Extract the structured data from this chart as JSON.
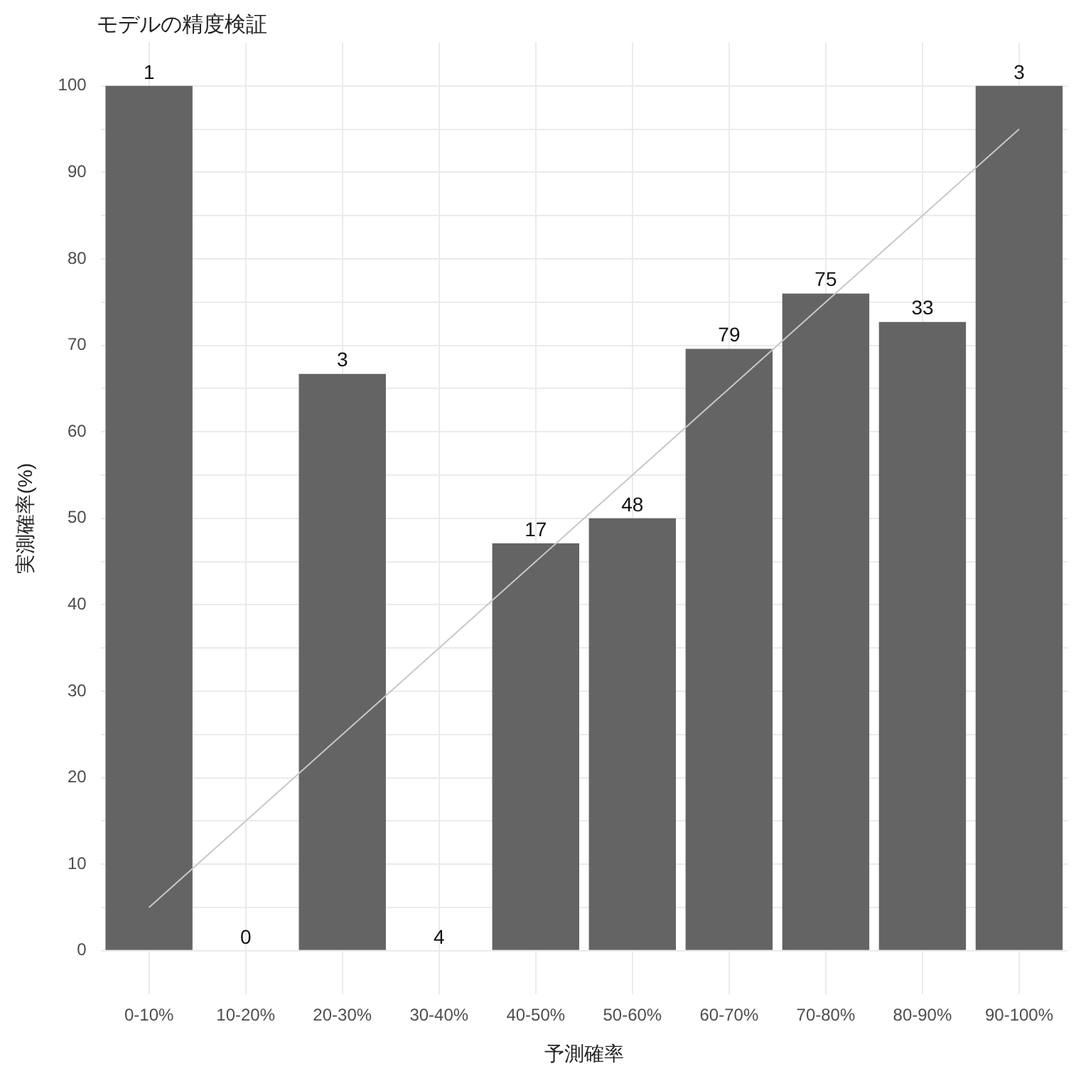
{
  "chart_data": {
    "type": "bar",
    "title": "モデルの精度検証",
    "xlabel": "予測確率",
    "ylabel": "実測確率(%)",
    "categories": [
      "0-10%",
      "10-20%",
      "20-30%",
      "30-40%",
      "40-50%",
      "50-60%",
      "60-70%",
      "70-80%",
      "80-90%",
      "90-100%"
    ],
    "annotations": [
      {
        "text": "1",
        "x": "0-10%",
        "y": 100
      },
      {
        "text": "0",
        "x": "10-20%",
        "y": 0
      },
      {
        "text": "3",
        "x": "20-30%",
        "y": 66.7
      },
      {
        "text": "4",
        "x": "30-40%",
        "y": 0
      },
      {
        "text": "17",
        "x": "40-50%",
        "y": 47.1
      },
      {
        "text": "48",
        "x": "50-60%",
        "y": 50
      },
      {
        "text": "79",
        "x": "60-70%",
        "y": 69.6
      },
      {
        "text": "75",
        "x": "70-80%",
        "y": 76
      },
      {
        "text": "33",
        "x": "80-90%",
        "y": 72.7
      },
      {
        "text": "3",
        "x": "90-100%",
        "y": 100
      }
    ],
    "series": [
      {
        "color": "#646464",
        "values": [
          100,
          0,
          66.7,
          0,
          47.1,
          50,
          69.6,
          76,
          72.7,
          100
        ]
      },
      {
        "type": "line",
        "color": "#c8c8c8",
        "values": [
          5,
          15,
          25,
          35,
          45,
          55,
          65,
          75,
          85,
          95
        ]
      }
    ],
    "ylim": [
      -5,
      105
    ],
    "yticks": [
      0,
      {
        "value": 5,
        "label": null
      },
      10,
      {
        "value": 15,
        "label": null
      },
      20,
      {
        "value": 25,
        "label": null
      },
      30,
      {
        "value": 35,
        "label": null
      },
      40,
      {
        "value": 45,
        "label": null
      },
      50,
      {
        "value": 55,
        "label": null
      },
      60,
      {
        "value": 65,
        "label": null
      },
      70,
      {
        "value": 75,
        "label": null
      },
      80,
      {
        "value": 85,
        "label": null
      },
      90,
      {
        "value": 95,
        "label": null
      },
      100
    ],
    "grid": true,
    "legend": false,
    "marker": "none"
  }
}
